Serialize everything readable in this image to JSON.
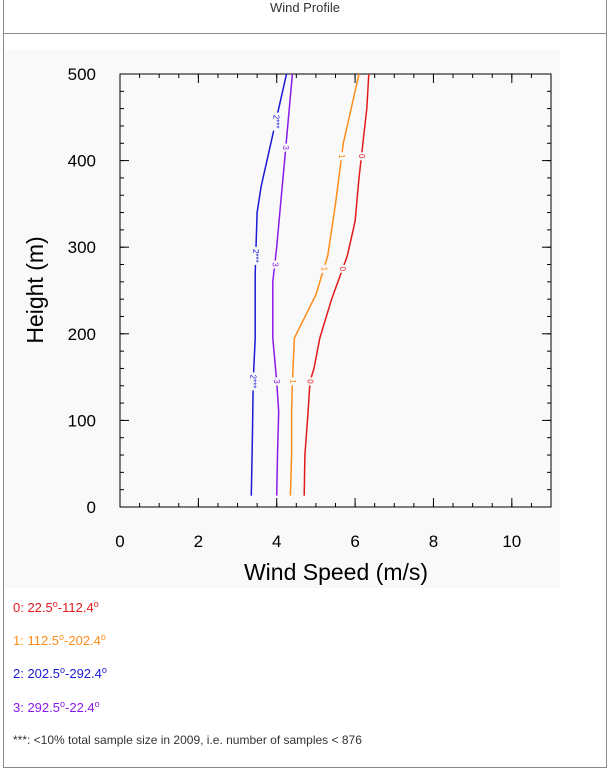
{
  "page": {
    "title": "Wind Profile"
  },
  "chart_data": {
    "type": "line",
    "xlabel": "Wind Speed (m/s)",
    "ylabel": "Height (m)",
    "xlim": [
      0,
      11
    ],
    "ylim": [
      0,
      500
    ],
    "xticks": [
      0,
      2,
      4,
      6,
      8,
      10
    ],
    "yticks": [
      0,
      100,
      200,
      300,
      400,
      500
    ],
    "grid": false,
    "series": [
      {
        "name": "0",
        "color": "#e31a1c",
        "points": [
          [
            4.7,
            13
          ],
          [
            4.72,
            60
          ],
          [
            4.8,
            110
          ],
          [
            4.85,
            145
          ],
          [
            4.95,
            160
          ],
          [
            5.1,
            195
          ],
          [
            5.4,
            240
          ],
          [
            5.8,
            290
          ],
          [
            6.0,
            330
          ],
          [
            6.1,
            380
          ],
          [
            6.2,
            420
          ],
          [
            6.3,
            460
          ],
          [
            6.35,
            500
          ]
        ],
        "label_at": [
          145,
          275,
          405
        ]
      },
      {
        "name": "1",
        "color": "#ff8c1a",
        "points": [
          [
            4.35,
            13
          ],
          [
            4.38,
            60
          ],
          [
            4.38,
            110
          ],
          [
            4.4,
            145
          ],
          [
            4.45,
            195
          ],
          [
            5.0,
            245
          ],
          [
            5.3,
            290
          ],
          [
            5.5,
            350
          ],
          [
            5.7,
            420
          ],
          [
            5.95,
            470
          ],
          [
            6.1,
            500
          ]
        ],
        "label_at": [
          145,
          275,
          405
        ]
      },
      {
        "name": "2***",
        "color": "#1a1ad8",
        "points": [
          [
            3.35,
            13
          ],
          [
            3.38,
            80
          ],
          [
            3.4,
            145
          ],
          [
            3.45,
            195
          ],
          [
            3.45,
            270
          ],
          [
            3.5,
            340
          ],
          [
            3.6,
            370
          ],
          [
            3.8,
            410
          ],
          [
            4.0,
            450
          ],
          [
            4.15,
            480
          ],
          [
            4.25,
            500
          ]
        ],
        "label_at": [
          145,
          290,
          445
        ]
      },
      {
        "name": "3",
        "color": "#8a1ae8",
        "points": [
          [
            4.0,
            13
          ],
          [
            4.02,
            60
          ],
          [
            4.05,
            110
          ],
          [
            4.0,
            145
          ],
          [
            3.9,
            195
          ],
          [
            3.9,
            260
          ],
          [
            4.0,
            300
          ],
          [
            4.1,
            350
          ],
          [
            4.2,
            400
          ],
          [
            4.3,
            450
          ],
          [
            4.4,
            500
          ]
        ],
        "label_at": [
          145,
          280,
          415
        ]
      }
    ]
  },
  "legend": [
    {
      "pre": "0: 22.5",
      "mid": "-112.4",
      "color": "#e31a1c"
    },
    {
      "pre": "1: 112.5",
      "mid": "-202.4",
      "color": "#ff8c1a"
    },
    {
      "pre": "2: 202.5",
      "mid": "-292.4",
      "color": "#1a1ad8"
    },
    {
      "pre": "3: 292.5",
      "mid": "-22.4",
      "color": "#8a1ae8"
    }
  ],
  "degree_mark": "o",
  "note": "***: <10% total sample size in 2009, i.e. number of samples < 876"
}
